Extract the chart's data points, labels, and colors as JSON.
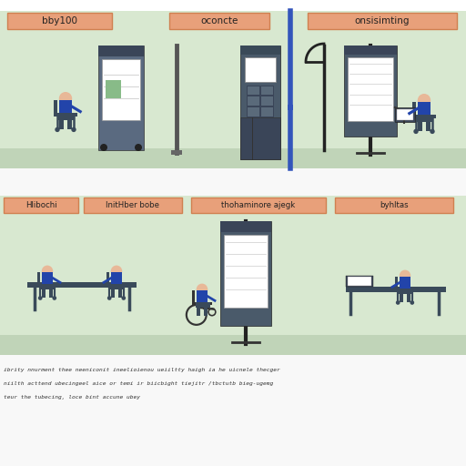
{
  "bg_color": "#ffffff",
  "strip_bg": "#d8e8d0",
  "strip_floor": "#c0d4b8",
  "white_gap": "#f0f0f0",
  "panel_color": "#e8a07a",
  "panel_border": "#d08050",
  "panel_text_color": "#222222",
  "kiosk_light_body": "#5a6a80",
  "kiosk_dark_body": "#3a4a5a",
  "kiosk_screen": "#ffffff",
  "kiosk_screen_border": "#888888",
  "person_head": "#e8b898",
  "person_body": "#2244aa",
  "person_pants": "#3a4a5a",
  "chair_color": "#3a4a5a",
  "wheelchair_color": "#333333",
  "pole_color": "#222222",
  "blue_pole": "#3355bb",
  "lamp_color": "#222222",
  "table_color": "#3a4a5a",
  "figsize": [
    5.12,
    5.12
  ],
  "dpi": 100,
  "top_labels": [
    "bby100",
    "oconcte",
    "onsisimting"
  ],
  "bottom_labels": [
    "Hlibochi",
    "InitHber bobe",
    "thohaminore ajegk",
    "byhltas"
  ],
  "caption_lines": [
    "ibrity nnurment thee neeniconit ineelioienou ueiiltty haigh ia he uicnele thecger",
    "niilth acttend ubecingeel aice or temi ir biicbight tiejitr /tbctutb bieg-ugemg",
    "teur the tubecing, loce bint accune ubey"
  ]
}
